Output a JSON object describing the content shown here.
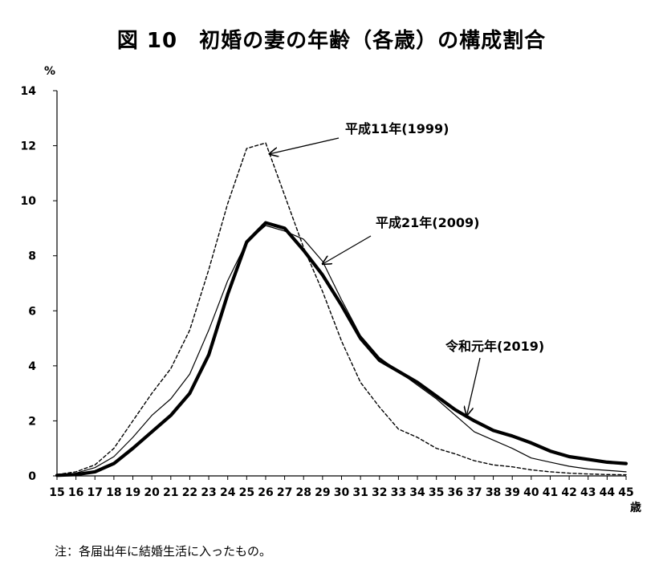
{
  "title": "図 10　初婚の妻の年齢（各歳）の構成割合",
  "note": "注：各届出年に結婚生活に入ったもの。",
  "chart_data": {
    "type": "line",
    "ylabel": "%",
    "xlabel": "歳",
    "ylim": [
      0,
      14
    ],
    "y_ticks": [
      0,
      2,
      4,
      6,
      8,
      10,
      12,
      14
    ],
    "x": [
      15,
      16,
      17,
      18,
      19,
      20,
      21,
      22,
      23,
      24,
      25,
      26,
      27,
      28,
      29,
      30,
      31,
      32,
      33,
      34,
      35,
      36,
      37,
      38,
      39,
      40,
      41,
      42,
      43,
      44,
      45
    ],
    "grid": false,
    "legend": "annotations",
    "series": [
      {
        "name": "平成11年(1999)",
        "style": "dashed",
        "color": "#000000",
        "values": [
          0.05,
          0.15,
          0.4,
          1.0,
          2.0,
          3.0,
          3.9,
          5.3,
          7.5,
          9.9,
          11.9,
          12.1,
          10.2,
          8.3,
          6.7,
          4.9,
          3.4,
          2.5,
          1.7,
          1.4,
          1.0,
          0.8,
          0.55,
          0.4,
          0.33,
          0.22,
          0.15,
          0.1,
          0.07,
          0.05,
          0.04
        ]
      },
      {
        "name": "平成21年(2009)",
        "style": "thin",
        "color": "#000000",
        "values": [
          0.02,
          0.1,
          0.3,
          0.7,
          1.4,
          2.2,
          2.8,
          3.7,
          5.3,
          7.1,
          8.5,
          9.1,
          8.9,
          8.6,
          7.8,
          6.4,
          5.1,
          4.3,
          3.8,
          3.3,
          2.8,
          2.2,
          1.6,
          1.3,
          1.0,
          0.65,
          0.5,
          0.35,
          0.25,
          0.2,
          0.15
        ]
      },
      {
        "name": "令和元年(2019)",
        "style": "thick",
        "color": "#000000",
        "values": [
          0.02,
          0.05,
          0.15,
          0.45,
          1.0,
          1.6,
          2.2,
          3.0,
          4.4,
          6.6,
          8.5,
          9.2,
          9.0,
          8.2,
          7.3,
          6.2,
          5.0,
          4.2,
          3.8,
          3.4,
          2.9,
          2.4,
          2.0,
          1.65,
          1.45,
          1.2,
          0.9,
          0.7,
          0.6,
          0.5,
          0.45
        ]
      }
    ],
    "annotations": [
      {
        "text": "平成11年(1999)",
        "series": 0,
        "point_x": 26.2,
        "point_y": 11.7
      },
      {
        "text": "平成21年(2009)",
        "series": 1,
        "point_x": 29.0,
        "point_y": 7.7
      },
      {
        "text": "令和元年(2019)",
        "series": 2,
        "point_x": 36.6,
        "point_y": 2.2
      }
    ]
  }
}
